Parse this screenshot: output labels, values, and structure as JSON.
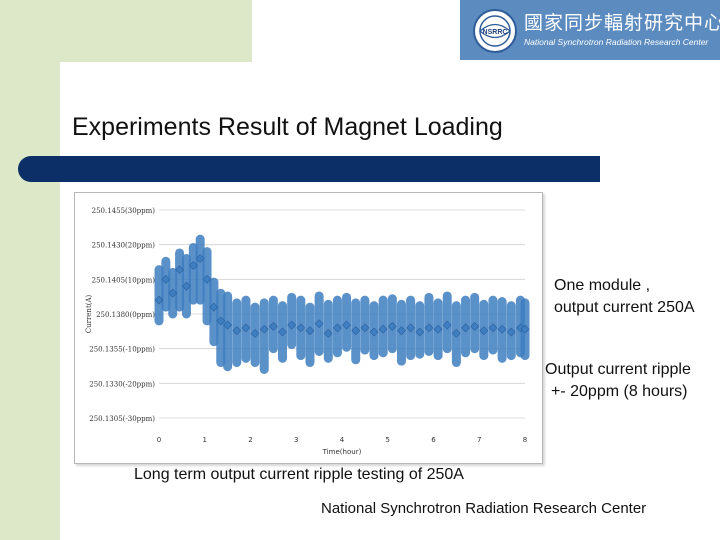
{
  "logo": {
    "emblem_label": "NSRRC",
    "cn_name": "國家同步輻射研究中心",
    "en_name": "National Synchrotron Radiation Research Center"
  },
  "slide": {
    "title": "Experiments Result of Magnet Loading",
    "note_module_line1": "One module ,",
    "note_module_line2": "output current 250A",
    "note_ripple_line1": "Output current ripple",
    "note_ripple_line2": "+- 20ppm (8 hours)",
    "caption": "Long term output current ripple testing of 250A",
    "footer": "National Synchrotron Radiation Research Center"
  },
  "colors": {
    "title_bar": "#0b2f66",
    "background_green": "#dde8c8",
    "logo_blue": "#5c8bc0",
    "series": "#3f7ec0"
  },
  "chart_data": {
    "type": "scatter",
    "xlabel": "Time(hour)",
    "ylabel": "Current(A)",
    "xlim": [
      0,
      8
    ],
    "ylim": [
      250.1305,
      250.1455
    ],
    "x_ticks": [
      "0",
      "1",
      "2",
      "3",
      "4",
      "5",
      "6",
      "7",
      "8"
    ],
    "y_ticks": [
      {
        "value": 250.1455,
        "label": "250.1455(30ppm)"
      },
      {
        "value": 250.143,
        "label": "250.1430(20ppm)"
      },
      {
        "value": 250.1405,
        "label": "250.1405(10ppm)"
      },
      {
        "value": 250.138,
        "label": "250.1380(0ppm)"
      },
      {
        "value": 250.1355,
        "label": "250.1355(-10ppm)"
      },
      {
        "value": 250.133,
        "label": "250.1330(-20ppm)"
      },
      {
        "value": 250.1305,
        "label": "250.1305(-30ppm)"
      }
    ],
    "grid": true,
    "series": [
      {
        "x": [
          0.0,
          0.15,
          0.3,
          0.45,
          0.6,
          0.75,
          0.9,
          1.05,
          1.2,
          1.35,
          1.5,
          1.7,
          1.9,
          2.1,
          2.3,
          2.5,
          2.7,
          2.9,
          3.1,
          3.3,
          3.5,
          3.7,
          3.9,
          4.1,
          4.3,
          4.5,
          4.7,
          4.9,
          5.1,
          5.3,
          5.5,
          5.7,
          5.9,
          6.1,
          6.3,
          6.5,
          6.7,
          6.9,
          7.1,
          7.3,
          7.5,
          7.7,
          7.9,
          8.0
        ],
        "y": [
          250.139,
          250.1405,
          250.1395,
          250.1412,
          250.14,
          250.1415,
          250.142,
          250.1405,
          250.1385,
          250.1375,
          250.1372,
          250.1368,
          250.137,
          250.1366,
          250.1369,
          250.1371,
          250.1367,
          250.1372,
          250.137,
          250.1368,
          250.1373,
          250.1366,
          250.137,
          250.1372,
          250.1368,
          250.137,
          250.1367,
          250.1369,
          250.1371,
          250.1368,
          250.137,
          250.1367,
          250.137,
          250.1369,
          250.1372,
          250.1366,
          250.137,
          250.1371,
          250.1368,
          250.137,
          250.1369,
          250.1367,
          250.137,
          250.1369
        ],
        "min": [
          250.1375,
          250.1385,
          250.138,
          250.1385,
          250.138,
          250.139,
          250.139,
          250.1375,
          250.136,
          250.1345,
          250.1342,
          250.1345,
          250.1348,
          250.1345,
          250.134,
          250.1355,
          250.1348,
          250.1358,
          250.135,
          250.1345,
          250.1353,
          250.1348,
          250.1352,
          250.1356,
          250.1347,
          250.1354,
          250.135,
          250.1352,
          250.1355,
          250.1346,
          250.135,
          250.1351,
          250.1353,
          250.135,
          250.1355,
          250.1345,
          250.1352,
          250.1355,
          250.135,
          250.1354,
          250.1348,
          250.135,
          250.1352,
          250.135
        ],
        "max": [
          250.1412,
          250.1418,
          250.141,
          250.1424,
          250.142,
          250.1428,
          250.1434,
          250.1425,
          250.1403,
          250.1395,
          250.1393,
          250.1388,
          250.139,
          250.1385,
          250.1388,
          250.139,
          250.1386,
          250.1392,
          250.139,
          250.1385,
          250.1393,
          250.1387,
          250.139,
          250.1392,
          250.1388,
          250.139,
          250.1386,
          250.139,
          250.1391,
          250.1387,
          250.139,
          250.1386,
          250.1392,
          250.1388,
          250.1393,
          250.1386,
          250.139,
          250.1392,
          250.1387,
          250.139,
          250.1389,
          250.1386,
          250.139,
          250.1388
        ]
      }
    ]
  }
}
